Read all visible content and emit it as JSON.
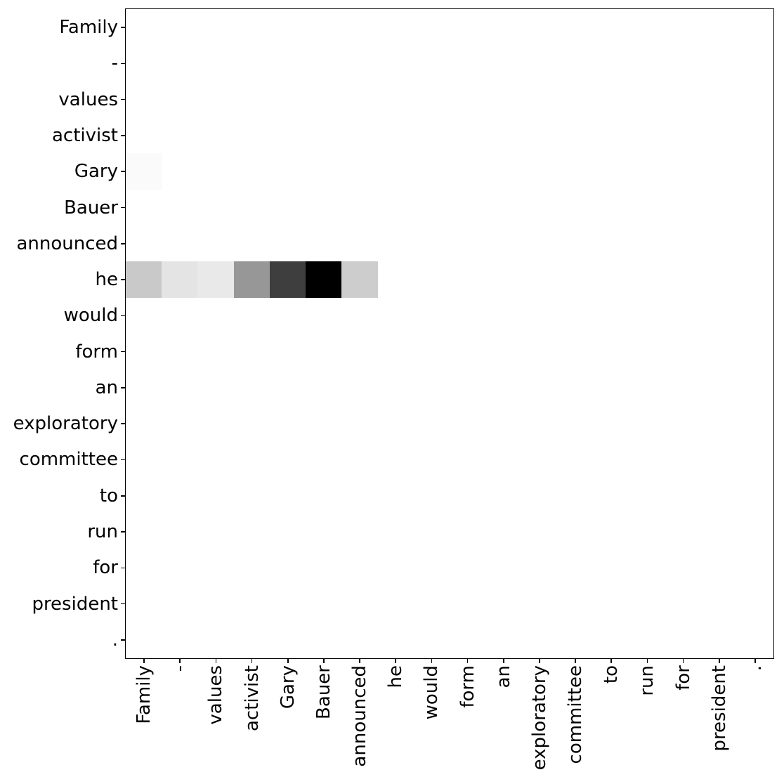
{
  "figure": {
    "background_color": "#ffffff",
    "axes_border_color": "#000000",
    "tick_color": "#000000",
    "label_color": "#000000"
  },
  "chart_data": {
    "type": "heatmap",
    "title": "",
    "xlabel": "",
    "ylabel": "",
    "grid_size": 18,
    "tokens": [
      "Family",
      "-",
      "values",
      "activist",
      "Gary",
      "Bauer",
      "announced",
      "he",
      "would",
      "form",
      "an",
      "exploratory",
      "committee",
      "to",
      "run",
      "for",
      "president",
      "."
    ],
    "x_tick_labels_rotation_deg": 90,
    "colormap": "grayscale white(0) to black(1)",
    "value_range": [
      0,
      1
    ],
    "all_other_cells_value": 0,
    "background_cell_color": "#ffffff",
    "nonzero_cells": [
      {
        "row_token": "he",
        "col_token": "Family",
        "value": 0.21,
        "color": "#c9c9c9"
      },
      {
        "row_token": "he",
        "col_token": "-",
        "value": 0.11,
        "color": "#e4e4e4"
      },
      {
        "row_token": "he",
        "col_token": "values",
        "value": 0.08,
        "color": "#e9e9e9"
      },
      {
        "row_token": "he",
        "col_token": "activist",
        "value": 0.41,
        "color": "#979797"
      },
      {
        "row_token": "he",
        "col_token": "Gary",
        "value": 0.76,
        "color": "#3e3e3e"
      },
      {
        "row_token": "he",
        "col_token": "Bauer",
        "value": 1.0,
        "color": "#000000"
      },
      {
        "row_token": "he",
        "col_token": "announced",
        "value": 0.2,
        "color": "#cdcdcd"
      },
      {
        "row_token": "Gary",
        "col_token": "Family",
        "value": 0.02,
        "color": "#fafafa"
      }
    ]
  }
}
